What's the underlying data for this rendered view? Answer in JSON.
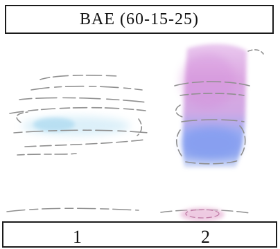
{
  "title": "BAE (60-15-25)",
  "lanes": [
    "1",
    "2"
  ],
  "colors": {
    "lane1_spot": "#7ec8ec",
    "lane2_upper": "#d08ad8",
    "lane2_lower": "#6f8ff0",
    "bottom_spot": "#d87ab8",
    "pencil": "#8f8f8f"
  }
}
